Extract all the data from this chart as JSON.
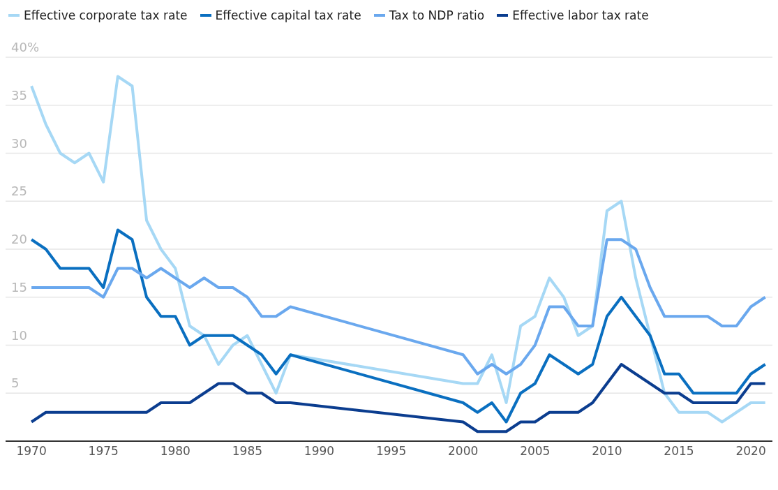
{
  "chart_data": {
    "type": "line",
    "x": [
      1970,
      1971,
      1972,
      1973,
      1974,
      1975,
      1976,
      1977,
      1978,
      1979,
      1980,
      1981,
      1982,
      1983,
      1984,
      1985,
      1986,
      1987,
      1988,
      2000,
      2001,
      2002,
      2003,
      2004,
      2005,
      2006,
      2007,
      2008,
      2009,
      2010,
      2011,
      2012,
      2013,
      2014,
      2015,
      2016,
      2017,
      2018,
      2019,
      2020,
      2021
    ],
    "series": [
      {
        "name": "Effective corporate tax rate",
        "color": "#a6d8f5",
        "values": [
          37,
          33,
          30,
          29,
          30,
          27,
          38,
          37,
          23,
          20,
          18,
          12,
          11,
          8,
          10,
          11,
          8,
          5,
          9,
          6,
          6,
          9,
          4,
          12,
          13,
          17,
          15,
          11,
          12,
          24,
          25,
          17,
          11,
          5,
          3,
          3,
          3,
          2,
          3,
          4,
          4
        ]
      },
      {
        "name": "Effective capital tax rate",
        "color": "#0a6fc0",
        "values": [
          21,
          20,
          18,
          18,
          18,
          16,
          22,
          21,
          15,
          13,
          13,
          10,
          11,
          11,
          11,
          10,
          9,
          7,
          9,
          4,
          3,
          4,
          2,
          5,
          6,
          9,
          8,
          7,
          8,
          13,
          15,
          13,
          11,
          7,
          7,
          5,
          5,
          5,
          5,
          7,
          8
        ]
      },
      {
        "name": "Tax to NDP ratio",
        "color": "#6aa8ee",
        "values": [
          16,
          16,
          16,
          16,
          16,
          15,
          18,
          18,
          17,
          18,
          17,
          16,
          17,
          16,
          16,
          15,
          13,
          13,
          14,
          9,
          7,
          8,
          7,
          8,
          10,
          14,
          14,
          12,
          12,
          21,
          21,
          20,
          16,
          13,
          13,
          13,
          13,
          12,
          12,
          14,
          15
        ]
      },
      {
        "name": "Effective labor tax rate",
        "color": "#0b3d8f",
        "values": [
          2,
          3,
          3,
          3,
          3,
          3,
          3,
          3,
          3,
          4,
          4,
          4,
          5,
          6,
          6,
          5,
          5,
          4,
          4,
          2,
          1,
          1,
          1,
          2,
          2,
          3,
          3,
          3,
          4,
          6,
          8,
          7,
          6,
          5,
          5,
          4,
          4,
          4,
          4,
          6,
          6
        ]
      }
    ],
    "xlim": [
      1968.2,
      2021.5
    ],
    "xticks": [
      1970,
      1975,
      1980,
      1985,
      1990,
      1995,
      2000,
      2005,
      2010,
      2015,
      2020
    ],
    "ylim": [
      0,
      40
    ],
    "yticks": [
      {
        "value": 0,
        "label": null
      },
      5,
      10,
      15,
      20,
      25,
      30,
      35,
      {
        "value": 40,
        "label": "40%"
      }
    ],
    "grid": "y",
    "legend": "top left",
    "marker": "none",
    "line_style": "solid"
  }
}
